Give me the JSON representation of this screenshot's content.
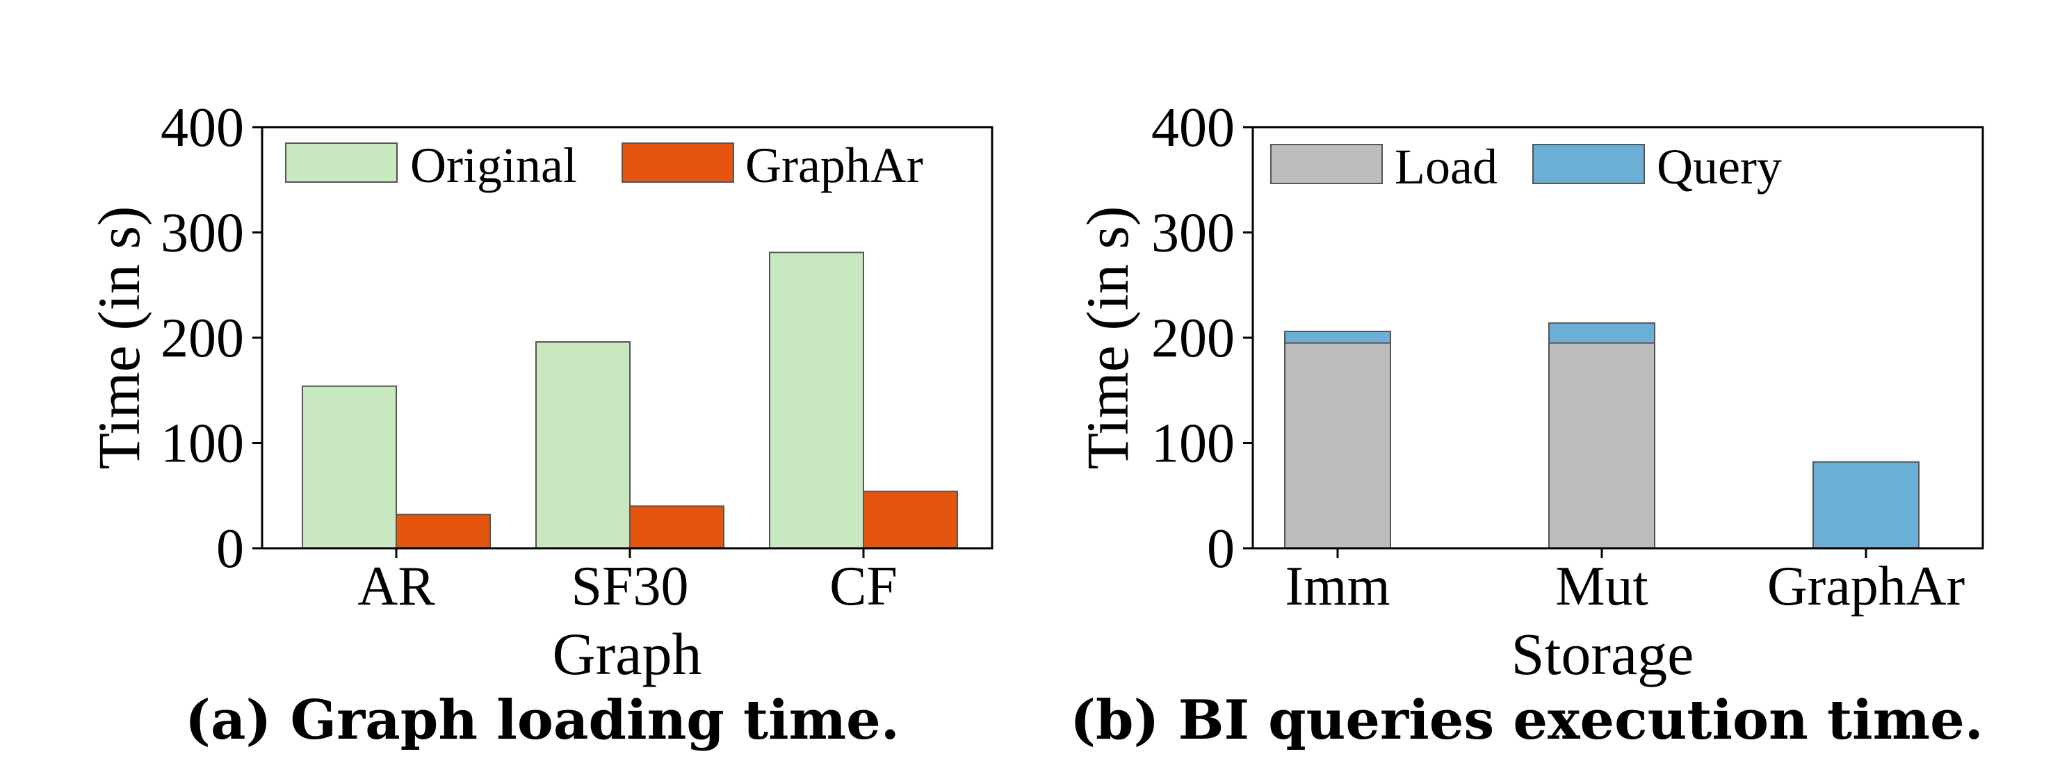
{
  "chart_data": [
    {
      "id": "a",
      "type": "bar",
      "caption": "(a) Graph loading time.",
      "xlabel": "Graph",
      "ylabel": "Time (in s)",
      "ylim": [
        0,
        400
      ],
      "yticks": [
        "0",
        "100",
        "200",
        "300",
        "400"
      ],
      "categories": [
        "AR",
        "SF30",
        "CF"
      ],
      "series": [
        {
          "name": "Original",
          "color": "#c8e9c0",
          "values": [
            154,
            196,
            281
          ]
        },
        {
          "name": "GraphAr",
          "color": "#e6550d",
          "values": [
            32,
            40,
            54
          ]
        }
      ],
      "legend_position": "top"
    },
    {
      "id": "b",
      "type": "bar",
      "stacked": true,
      "caption": "(b) BI queries execution time.",
      "xlabel": "Storage",
      "ylabel": "Time (in s)",
      "ylim": [
        0,
        400
      ],
      "yticks": [
        "0",
        "100",
        "200",
        "300",
        "400"
      ],
      "categories": [
        "Imm",
        "Mut",
        "GraphAr"
      ],
      "series": [
        {
          "name": "Load",
          "color": "#bdbdbd",
          "values": [
            195,
            195,
            0
          ]
        },
        {
          "name": "Query",
          "color": "#6baed6",
          "values": [
            11,
            19,
            82
          ]
        }
      ],
      "legend_position": "top"
    }
  ]
}
